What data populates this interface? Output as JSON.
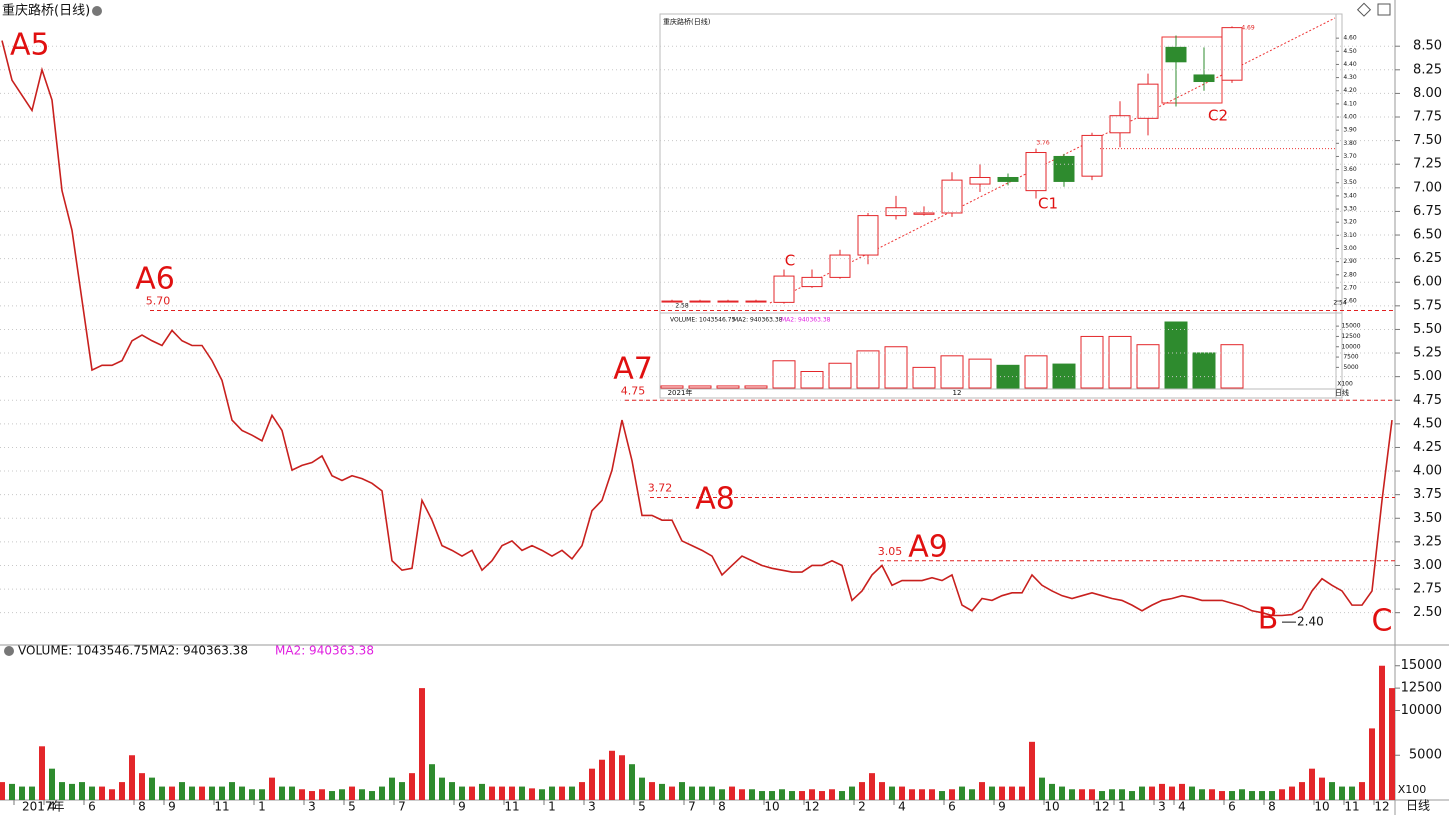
{
  "chart_data": [
    {
      "type": "line",
      "title": "重庆路桥(日线)",
      "period_label": "日线",
      "color": "#c8201e",
      "grid": true,
      "categories": [
        null,
        null,
        "2017年",
        null,
        null,
        "4",
        null,
        null,
        null,
        "6",
        null,
        null,
        null,
        null,
        "8",
        null,
        null,
        "9",
        null,
        null,
        null,
        null,
        "11",
        null,
        null,
        null,
        "1",
        null,
        null,
        null,
        null,
        "3",
        null,
        null,
        null,
        "5",
        null,
        null,
        null,
        null,
        "7",
        null,
        null,
        null,
        null,
        null,
        "9",
        null,
        null,
        null,
        null,
        "11",
        null,
        null,
        null,
        "1",
        null,
        null,
        null,
        "3",
        null,
        null,
        null,
        null,
        "5",
        null,
        null,
        null,
        null,
        "7",
        null,
        null,
        "8",
        null,
        null,
        null,
        null,
        "10",
        null,
        null,
        null,
        "12",
        null,
        null,
        null,
        null,
        "2",
        null,
        null,
        null,
        "4",
        null,
        null,
        null,
        null,
        "6",
        null,
        null,
        null,
        null,
        "9",
        null,
        null,
        null,
        null,
        "10",
        null,
        null,
        null,
        null,
        "12",
        null,
        "1",
        null,
        null,
        null,
        "3",
        null,
        "4",
        null,
        null,
        null,
        null,
        "6",
        null,
        null,
        null,
        "8",
        null,
        null,
        null,
        null,
        "10",
        null,
        null,
        "11",
        null,
        null,
        "12",
        null
      ],
      "values": [
        8.56,
        8.14,
        7.98,
        7.82,
        8.25,
        7.93,
        6.97,
        6.55,
        5.81,
        5.07,
        5.12,
        5.12,
        5.17,
        5.38,
        5.44,
        5.38,
        5.33,
        5.49,
        5.38,
        5.33,
        5.33,
        5.17,
        4.96,
        4.54,
        4.43,
        4.38,
        4.32,
        4.59,
        4.43,
        4.01,
        4.06,
        4.09,
        4.16,
        3.95,
        3.9,
        3.95,
        3.92,
        3.87,
        3.79,
        3.05,
        2.95,
        2.97,
        3.69,
        3.48,
        3.21,
        3.16,
        3.1,
        3.16,
        2.95,
        3.05,
        3.21,
        3.26,
        3.16,
        3.21,
        3.16,
        3.1,
        3.16,
        3.07,
        3.21,
        3.58,
        3.69,
        4.01,
        4.54,
        4.11,
        3.53,
        3.53,
        3.48,
        3.48,
        3.26,
        3.21,
        3.16,
        3.1,
        2.9,
        3.0,
        3.1,
        3.05,
        3.0,
        2.97,
        2.95,
        2.93,
        2.93,
        3.0,
        3.0,
        3.05,
        3.0,
        2.63,
        2.73,
        2.9,
        3.0,
        2.79,
        2.84,
        2.84,
        2.84,
        2.87,
        2.84,
        2.9,
        2.58,
        2.52,
        2.65,
        2.63,
        2.68,
        2.71,
        2.71,
        2.9,
        2.79,
        2.73,
        2.68,
        2.65,
        2.68,
        2.71,
        2.68,
        2.65,
        2.63,
        2.58,
        2.52,
        2.58,
        2.63,
        2.65,
        2.68,
        2.66,
        2.63,
        2.63,
        2.63,
        2.6,
        2.57,
        2.52,
        2.5,
        2.47,
        2.47,
        2.48,
        2.54,
        2.73,
        2.86,
        2.79,
        2.73,
        2.58,
        2.58,
        2.73,
        3.69,
        4.54
      ],
      "ylim": [
        2.2,
        9.0
      ],
      "yticks": [
        {
          "value": 2.5,
          "label": "2.50"
        },
        2.75,
        {
          "value": 3,
          "label": "3.00"
        },
        3.25,
        {
          "value": 3.5,
          "label": "3.50"
        },
        3.75,
        {
          "value": 4,
          "label": "4.00"
        },
        4.25,
        {
          "value": 4.5,
          "label": "4.50"
        },
        4.75,
        {
          "value": 5,
          "label": "5.00"
        },
        5.25,
        {
          "value": 5.5,
          "label": "5.50"
        },
        5.75,
        {
          "value": 6,
          "label": "6.00"
        },
        6.25,
        {
          "value": 6.5,
          "label": "6.50"
        },
        6.75,
        {
          "value": 7,
          "label": "7.00"
        },
        7.25,
        {
          "value": 7.5,
          "label": "7.50"
        },
        7.75,
        {
          "value": 8,
          "label": "8.00"
        },
        8.25,
        {
          "value": 8.5,
          "label": "8.50"
        }
      ],
      "levels": [
        {
          "value": 5.7,
          "label": "5.70"
        },
        4.75,
        3.72,
        3.05
      ],
      "low_label": {
        "value": 2.4,
        "label": "2.40"
      },
      "annotations": [
        "A5",
        "A6",
        "A7",
        "A8",
        "A9",
        "B",
        "C"
      ]
    },
    {
      "type": "bar",
      "up_color": "#e3262a",
      "down_color": "#2e8b2e",
      "header": [
        {
          "text": "VOLUME: 1043546.75",
          "color": "#111111"
        },
        {
          "text": "MA2: 940363.38",
          "color": "#111111"
        },
        {
          "text": "MA2: 940363.38",
          "color": "#e020e0"
        }
      ],
      "unit_label": "X100",
      "values": [
        2000,
        1800,
        1500,
        1500,
        6000,
        3500,
        2000,
        1800,
        2000,
        1500,
        1500,
        1200,
        2000,
        5000,
        3000,
        2500,
        1500,
        1500,
        2000,
        1500,
        1500,
        1500,
        1500,
        2000,
        1500,
        1200,
        1200,
        2500,
        1500,
        1500,
        1200,
        1000,
        1200,
        1000,
        1200,
        1500,
        1200,
        1000,
        1500,
        2500,
        2000,
        3000,
        12500,
        4000,
        2500,
        2000,
        1500,
        1500,
        1800,
        1500,
        1500,
        1500,
        1500,
        1300,
        1200,
        1500,
        1500,
        1500,
        2000,
        3500,
        4500,
        5500,
        5000,
        4000,
        2500,
        2000,
        1800,
        1500,
        2000,
        1500,
        1500,
        1500,
        1200,
        1500,
        1200,
        1200,
        1000,
        1000,
        1200,
        1000,
        1000,
        1200,
        1000,
        1200,
        1000,
        1500,
        2000,
        3000,
        2000,
        1500,
        1500,
        1200,
        1200,
        1200,
        1000,
        1200,
        1500,
        1200,
        2000,
        1500,
        1500,
        1500,
        1500,
        6500,
        2500,
        1800,
        1500,
        1200,
        1200,
        1200,
        1000,
        1200,
        1200,
        1000,
        1500,
        1500,
        1800,
        1500,
        1800,
        1500,
        1200,
        1200,
        1000,
        1000,
        1200,
        1000,
        1000,
        1000,
        1200,
        1500,
        2000,
        3500,
        2500,
        2000,
        1500,
        1500,
        2000,
        8000,
        15000,
        12500
      ],
      "ylim": [
        0,
        16200
      ],
      "yticks": [
        5000,
        10000,
        12500,
        15000
      ]
    },
    {
      "type": "candlestick",
      "title": "重庆路桥(日线)",
      "up_color": "#e3262a",
      "down_color": "#2e8b2e",
      "open": [
        2.6,
        2.6,
        2.6,
        2.6,
        2.59,
        2.71,
        2.78,
        2.95,
        3.25,
        3.26,
        3.27,
        3.49,
        3.54,
        3.44,
        3.7,
        3.55,
        3.88,
        3.99,
        4.53,
        4.32,
        4.28
      ],
      "high": [
        2.61,
        2.61,
        2.61,
        2.61,
        2.84,
        2.84,
        2.99,
        3.27,
        3.4,
        3.32,
        3.58,
        3.64,
        3.57,
        3.76,
        3.72,
        3.88,
        4.12,
        4.33,
        4.62,
        4.53,
        4.69
      ],
      "low": [
        2.59,
        2.59,
        2.59,
        2.59,
        2.58,
        2.7,
        2.77,
        2.88,
        3.22,
        3.25,
        3.24,
        3.43,
        3.48,
        3.38,
        3.47,
        3.52,
        3.77,
        3.86,
        4.08,
        4.2,
        4.26
      ],
      "close": [
        2.6,
        2.6,
        2.6,
        2.6,
        2.79,
        2.78,
        2.95,
        3.25,
        3.31,
        3.27,
        3.52,
        3.54,
        3.51,
        3.73,
        3.51,
        3.86,
        4.01,
        4.25,
        4.42,
        4.27,
        4.68
      ],
      "ylim": [
        2.57,
        4.7
      ],
      "yticks": [
        {
          "value": 2.6,
          "label": "2.60"
        },
        {
          "value": 2.7,
          "label": "2.70"
        },
        {
          "value": 2.8,
          "label": "2.80"
        },
        {
          "value": 2.9,
          "label": "2.90"
        },
        {
          "value": 3.0,
          "label": "3.00"
        },
        {
          "value": 3.1,
          "label": "3.10"
        },
        {
          "value": 3.2,
          "label": "3.20"
        },
        {
          "value": 3.3,
          "label": "3.30"
        },
        {
          "value": 3.4,
          "label": "3.40"
        },
        {
          "value": 3.5,
          "label": "3.50"
        },
        {
          "value": 3.6,
          "label": "3.60"
        },
        {
          "value": 3.7,
          "label": "3.70"
        },
        {
          "value": 3.8,
          "label": "3.80"
        },
        {
          "value": 3.9,
          "label": "3.90"
        },
        {
          "value": 4.0,
          "label": "4.00"
        },
        {
          "value": 4.1,
          "label": "4.10"
        },
        {
          "value": 4.2,
          "label": "4.20"
        },
        {
          "value": 4.3,
          "label": "4.30"
        },
        {
          "value": 4.4,
          "label": "4.40"
        },
        {
          "value": 4.5,
          "label": "4.50"
        },
        {
          "value": 4.6,
          "label": "4.60"
        }
      ],
      "price_labels": [
        3.76,
        4.69,
        2.58,
        2.54
      ],
      "annotations": [
        "C",
        "C1",
        "C2"
      ],
      "x_labels": [
        "2021年",
        "12"
      ],
      "period_label": "日线"
    },
    {
      "type": "bar",
      "up_color": "#e3262a",
      "down_color": "#2e8b2e",
      "header": [
        {
          "text": "VOLUME: 1043546.75",
          "color": "#111111"
        },
        {
          "text": "MA2: 940363.38",
          "color": "#111111"
        },
        {
          "text": "MA2: 940363.38",
          "color": "#e020e0"
        }
      ],
      "unit_label": "X100",
      "values": [
        500,
        500,
        500,
        500,
        6600,
        4000,
        6000,
        9000,
        10000,
        5000,
        7800,
        7000,
        5500,
        7800,
        5800,
        12500,
        12500,
        10500,
        16000,
        8500,
        10500
      ],
      "ylim": [
        0,
        16000
      ],
      "yticks": [
        5000,
        7500,
        10000,
        12500,
        15000
      ]
    }
  ]
}
